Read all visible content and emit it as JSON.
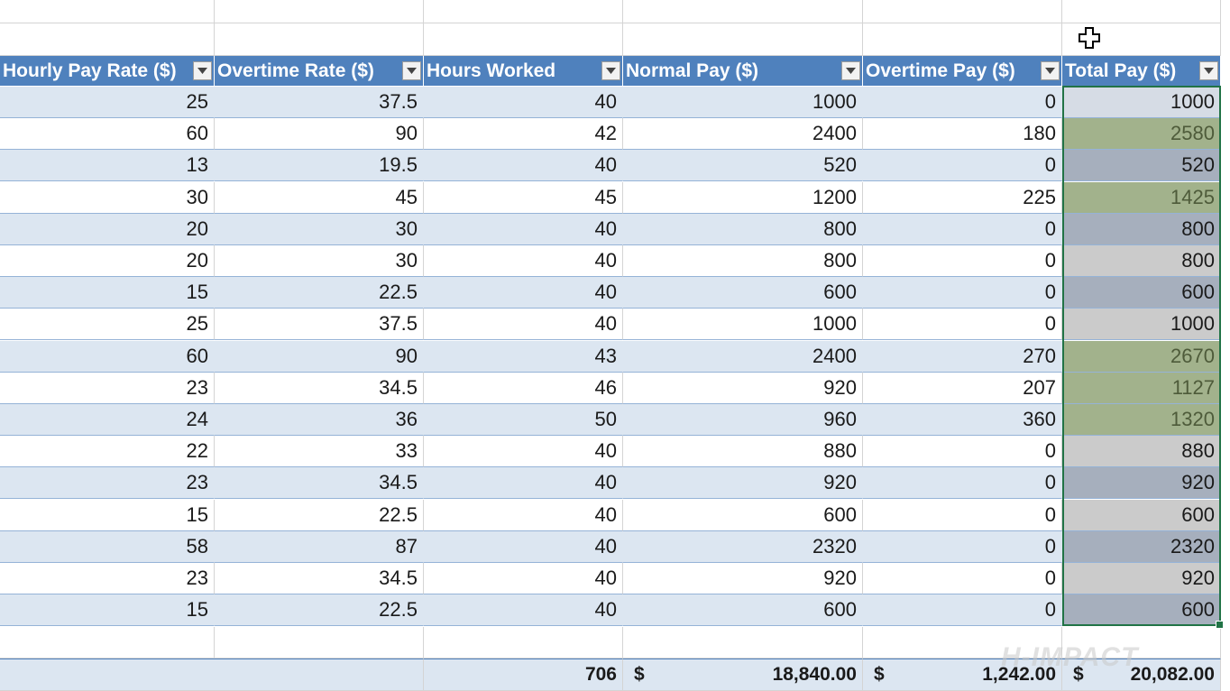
{
  "headers": [
    {
      "label": "Hourly Pay Rate ($)"
    },
    {
      "label": "Overtime Rate ($)"
    },
    {
      "label": "Hours Worked"
    },
    {
      "label": "Normal Pay ($)"
    },
    {
      "label": "Overtime Pay ($)"
    },
    {
      "label": "Total Pay ($)"
    }
  ],
  "rows": [
    {
      "hourly": "25",
      "ot_rate": "37.5",
      "hours": "40",
      "normal": "1000",
      "ot_pay": "0",
      "total": "1000",
      "cf": "pale"
    },
    {
      "hourly": "60",
      "ot_rate": "90",
      "hours": "42",
      "normal": "2400",
      "ot_pay": "180",
      "total": "2580",
      "cf": "green"
    },
    {
      "hourly": "13",
      "ot_rate": "19.5",
      "hours": "40",
      "normal": "520",
      "ot_pay": "0",
      "total": "520",
      "cf": "dark"
    },
    {
      "hourly": "30",
      "ot_rate": "45",
      "hours": "45",
      "normal": "1200",
      "ot_pay": "225",
      "total": "1425",
      "cf": "green"
    },
    {
      "hourly": "20",
      "ot_rate": "30",
      "hours": "40",
      "normal": "800",
      "ot_pay": "0",
      "total": "800",
      "cf": "dark"
    },
    {
      "hourly": "20",
      "ot_rate": "30",
      "hours": "40",
      "normal": "800",
      "ot_pay": "0",
      "total": "800",
      "cf": "none"
    },
    {
      "hourly": "15",
      "ot_rate": "22.5",
      "hours": "40",
      "normal": "600",
      "ot_pay": "0",
      "total": "600",
      "cf": "dark"
    },
    {
      "hourly": "25",
      "ot_rate": "37.5",
      "hours": "40",
      "normal": "1000",
      "ot_pay": "0",
      "total": "1000",
      "cf": "none"
    },
    {
      "hourly": "60",
      "ot_rate": "90",
      "hours": "43",
      "normal": "2400",
      "ot_pay": "270",
      "total": "2670",
      "cf": "green"
    },
    {
      "hourly": "23",
      "ot_rate": "34.5",
      "hours": "46",
      "normal": "920",
      "ot_pay": "207",
      "total": "1127",
      "cf": "green"
    },
    {
      "hourly": "24",
      "ot_rate": "36",
      "hours": "50",
      "normal": "960",
      "ot_pay": "360",
      "total": "1320",
      "cf": "green"
    },
    {
      "hourly": "22",
      "ot_rate": "33",
      "hours": "40",
      "normal": "880",
      "ot_pay": "0",
      "total": "880",
      "cf": "none"
    },
    {
      "hourly": "23",
      "ot_rate": "34.5",
      "hours": "40",
      "normal": "920",
      "ot_pay": "0",
      "total": "920",
      "cf": "dark"
    },
    {
      "hourly": "15",
      "ot_rate": "22.5",
      "hours": "40",
      "normal": "600",
      "ot_pay": "0",
      "total": "600",
      "cf": "none"
    },
    {
      "hourly": "58",
      "ot_rate": "87",
      "hours": "40",
      "normal": "2320",
      "ot_pay": "0",
      "total": "2320",
      "cf": "dark"
    },
    {
      "hourly": "23",
      "ot_rate": "34.5",
      "hours": "40",
      "normal": "920",
      "ot_pay": "0",
      "total": "920",
      "cf": "none"
    },
    {
      "hourly": "15",
      "ot_rate": "22.5",
      "hours": "40",
      "normal": "600",
      "ot_pay": "0",
      "total": "600",
      "cf": "dark"
    }
  ],
  "totals": {
    "hours": "706",
    "currency_symbol": "$",
    "normal": "18,840.00",
    "ot_pay": "1,242.00",
    "total": "20,082.00"
  },
  "watermark": "H-IMPACT",
  "colors": {
    "header_bg": "#4f81bd",
    "band": "#dce6f1",
    "selection": "#217346",
    "cf_green": "#a2b28c",
    "cf_dark": "#a6afbd",
    "cf_none": "#cbcbcb"
  }
}
